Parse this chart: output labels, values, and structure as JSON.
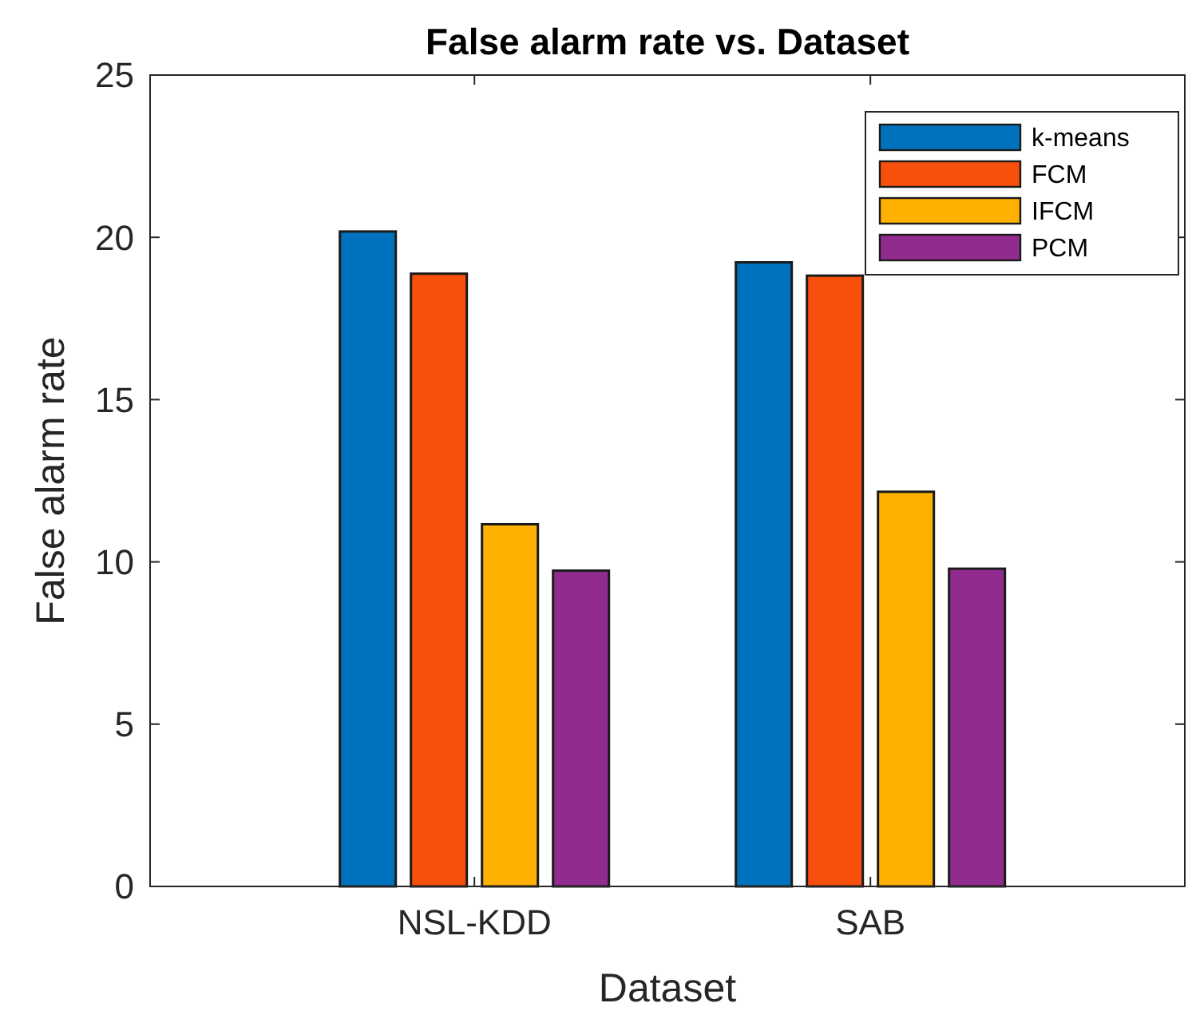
{
  "chart_data": {
    "type": "bar",
    "title": "False alarm rate vs. Dataset",
    "xlabel": "Dataset",
    "ylabel": "False alarm rate",
    "categories": [
      "NSL-KDD",
      "SAB"
    ],
    "series": [
      {
        "name": "k-means",
        "color": "#0072bd",
        "values": [
          20.18,
          19.23
        ]
      },
      {
        "name": "FCM",
        "color": "#f74f0c",
        "values": [
          18.88,
          18.82
        ]
      },
      {
        "name": "IFCM",
        "color": "#ffb000",
        "values": [
          11.16,
          12.16
        ]
      },
      {
        "name": "PCM",
        "color": "#912c8e",
        "values": [
          9.73,
          9.79
        ]
      }
    ],
    "ylim": [
      0,
      25
    ],
    "yticks": [
      0,
      5,
      10,
      15,
      20,
      25
    ],
    "grid": false,
    "legend": "top right"
  }
}
